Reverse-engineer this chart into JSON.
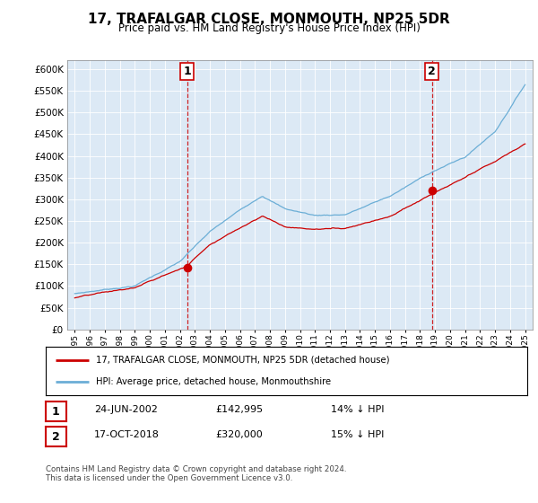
{
  "title": "17, TRAFALGAR CLOSE, MONMOUTH, NP25 5DR",
  "subtitle": "Price paid vs. HM Land Registry's House Price Index (HPI)",
  "legend_line1": "17, TRAFALGAR CLOSE, MONMOUTH, NP25 5DR (detached house)",
  "legend_line2": "HPI: Average price, detached house, Monmouthshire",
  "transaction1_date": "24-JUN-2002",
  "transaction1_price": "£142,995",
  "transaction1_hpi": "14% ↓ HPI",
  "transaction2_date": "17-OCT-2018",
  "transaction2_price": "£320,000",
  "transaction2_hpi": "15% ↓ HPI",
  "footer": "Contains HM Land Registry data © Crown copyright and database right 2024.\nThis data is licensed under the Open Government Licence v3.0.",
  "hpi_color": "#6baed6",
  "price_color": "#cc0000",
  "vline_color": "#cc0000",
  "chart_bg": "#dce9f5",
  "ylim_min": 0,
  "ylim_max": 620000,
  "yticks": [
    0,
    50000,
    100000,
    150000,
    200000,
    250000,
    300000,
    350000,
    400000,
    450000,
    500000,
    550000,
    600000
  ],
  "transaction1_x": 2002.48,
  "transaction1_y": 142995,
  "transaction2_x": 2018.79,
  "transaction2_y": 320000,
  "xmin": 1994.5,
  "xmax": 2025.5
}
